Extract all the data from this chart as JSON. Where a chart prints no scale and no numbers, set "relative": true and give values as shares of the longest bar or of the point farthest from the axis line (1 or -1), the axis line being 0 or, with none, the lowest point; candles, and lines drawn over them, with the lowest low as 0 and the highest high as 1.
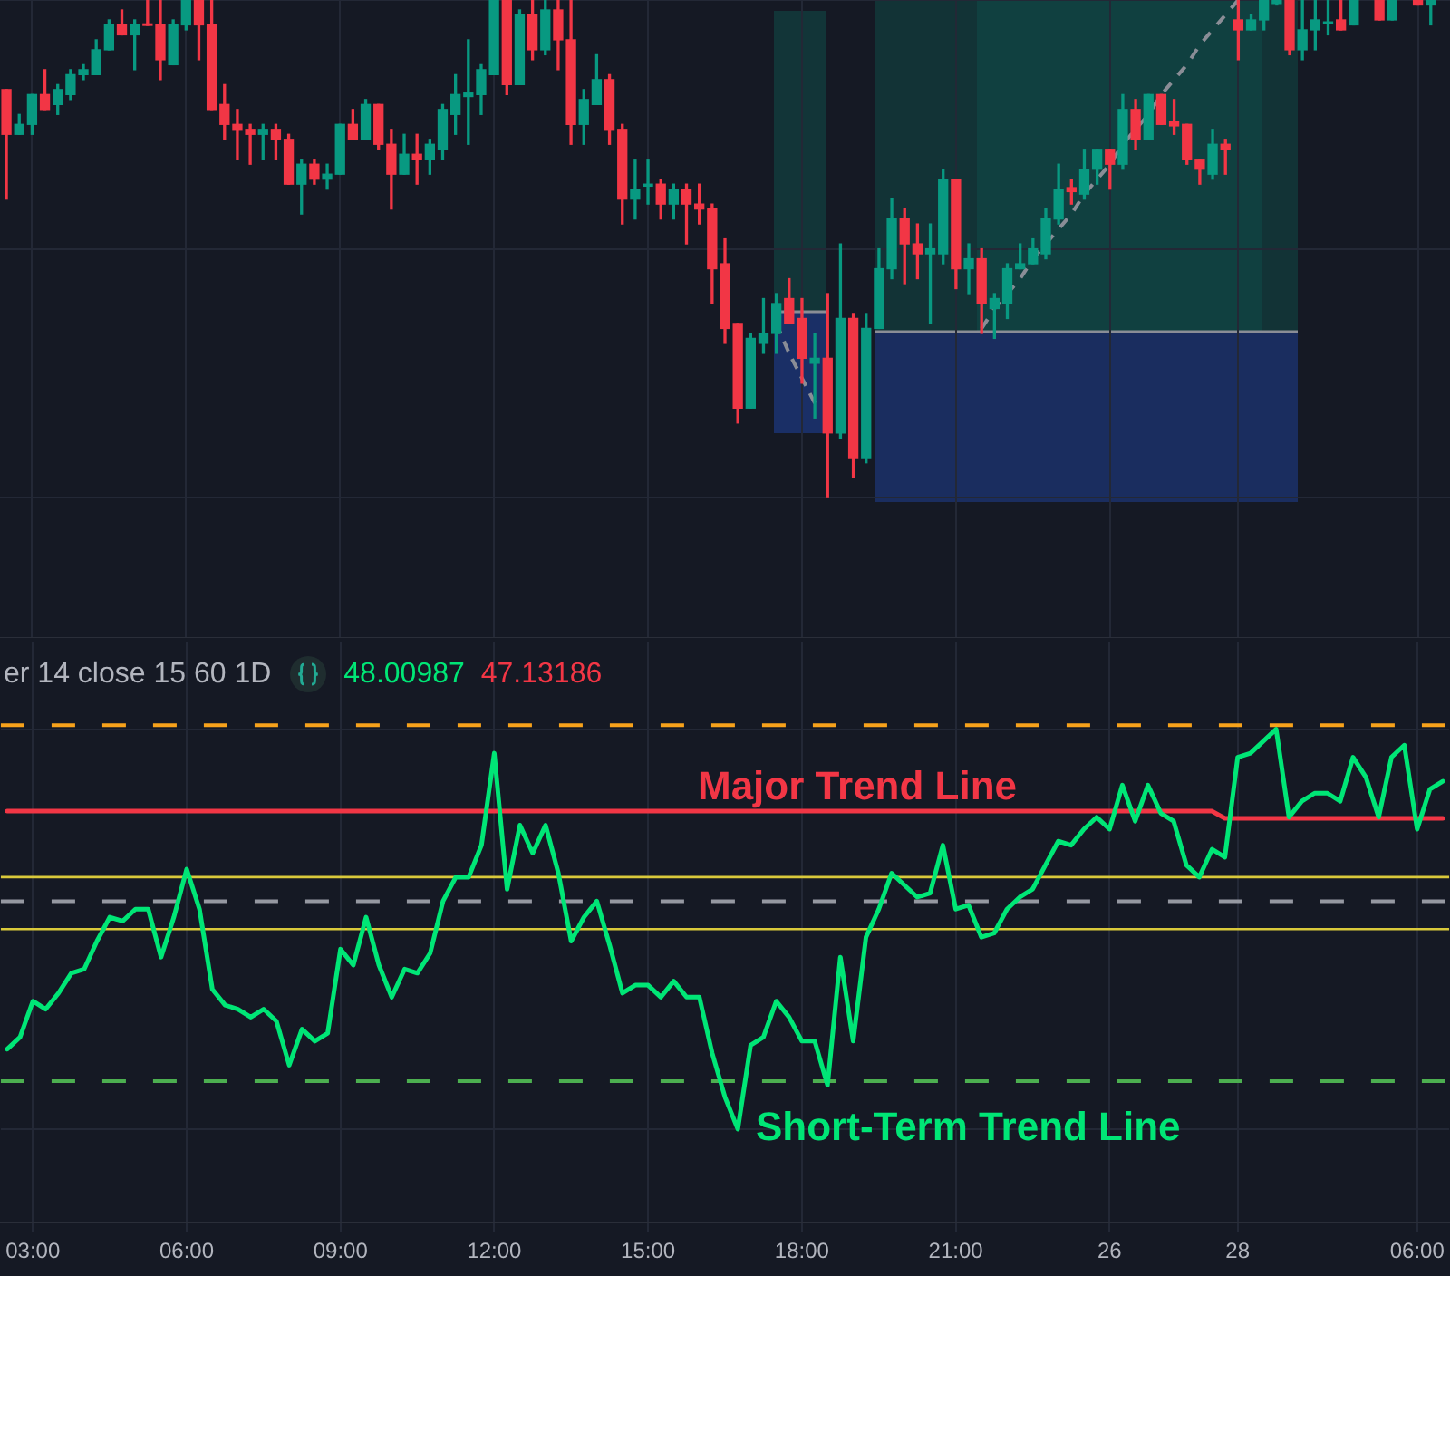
{
  "chart_data": [
    {
      "type": "candlestick",
      "relative": true,
      "tick_labels": false,
      "grid": true,
      "categories": [
        null,
        null,
        null,
        null,
        null,
        null,
        null,
        null,
        null,
        null,
        null,
        null,
        null,
        null,
        null,
        null,
        null,
        null,
        null,
        null,
        null,
        null,
        null,
        null,
        null,
        null,
        null,
        null,
        null,
        null,
        null,
        null,
        null,
        null,
        null,
        null,
        null,
        null,
        null,
        null,
        null,
        null,
        null,
        null,
        null,
        null,
        null,
        null,
        null,
        null,
        null,
        null,
        null,
        null,
        null,
        null,
        null,
        null,
        null,
        null,
        null,
        null,
        null,
        null,
        null,
        null,
        null,
        null,
        null,
        null,
        null,
        null,
        null,
        null,
        null,
        null,
        null,
        null,
        null,
        null,
        null,
        null,
        null,
        null,
        null,
        null,
        null,
        null,
        null,
        null,
        null,
        null,
        null,
        null,
        null,
        null,
        null,
        null,
        null,
        null,
        null,
        null,
        null,
        null,
        null,
        null,
        null,
        null,
        null,
        null,
        null,
        null,
        null
      ],
      "ohlc": [
        [
          0.82,
          0.82,
          0.6,
          0.73
        ],
        [
          0.73,
          0.77,
          0.73,
          0.75
        ],
        [
          0.75,
          0.81,
          0.73,
          0.81
        ],
        [
          0.81,
          0.86,
          0.78,
          0.78
        ],
        [
          0.79,
          0.83,
          0.77,
          0.82
        ],
        [
          0.81,
          0.86,
          0.8,
          0.85
        ],
        [
          0.85,
          0.87,
          0.84,
          0.86
        ],
        [
          0.85,
          0.92,
          0.85,
          0.9
        ],
        [
          0.9,
          0.96,
          0.9,
          0.95
        ],
        [
          0.95,
          0.98,
          0.93,
          0.93
        ],
        [
          0.93,
          0.96,
          0.86,
          0.95
        ],
        [
          0.952,
          1,
          0.949,
          0.949
        ],
        [
          0.95,
          1,
          0.84,
          0.88
        ],
        [
          0.87,
          0.96,
          0.87,
          0.95
        ],
        [
          0.95,
          1,
          0.94,
          1
        ],
        [
          1,
          1,
          0.88,
          0.95
        ],
        [
          0.95,
          1,
          0.78,
          0.78
        ],
        [
          0.79,
          0.83,
          0.72,
          0.75
        ],
        [
          0.75,
          0.78,
          0.68,
          0.74
        ],
        [
          0.74,
          0.75,
          0.67,
          0.73
        ],
        [
          0.73,
          0.75,
          0.68,
          0.74
        ],
        [
          0.74,
          0.75,
          0.68,
          0.72
        ],
        [
          0.72,
          0.73,
          0.63,
          0.63
        ],
        [
          0.63,
          0.68,
          0.57,
          0.67
        ],
        [
          0.67,
          0.68,
          0.63,
          0.64
        ],
        [
          0.64,
          0.67,
          0.62,
          0.65
        ],
        [
          0.65,
          0.75,
          0.65,
          0.75
        ],
        [
          0.75,
          0.78,
          0.72,
          0.72
        ],
        [
          0.72,
          0.8,
          0.72,
          0.79
        ],
        [
          0.79,
          0.79,
          0.7,
          0.71
        ],
        [
          0.71,
          0.74,
          0.58,
          0.65
        ],
        [
          0.65,
          0.73,
          0.65,
          0.69
        ],
        [
          0.69,
          0.73,
          0.63,
          0.68
        ],
        [
          0.68,
          0.72,
          0.65,
          0.71
        ],
        [
          0.7,
          0.79,
          0.68,
          0.78
        ],
        [
          0.77,
          0.85,
          0.73,
          0.81
        ],
        [
          0.806,
          0.92,
          0.71,
          0.813
        ],
        [
          0.81,
          0.87,
          0.77,
          0.86
        ],
        [
          0.85,
          1,
          0.85,
          1
        ],
        [
          1,
          1,
          0.81,
          0.83
        ],
        [
          0.83,
          0.98,
          0.83,
          0.97
        ],
        [
          0.97,
          1,
          0.88,
          0.9
        ],
        [
          0.9,
          1,
          0.89,
          0.98
        ],
        [
          0.98,
          1,
          0.86,
          0.92
        ],
        [
          0.92,
          1,
          0.71,
          0.75
        ],
        [
          0.75,
          0.82,
          0.71,
          0.8
        ],
        [
          0.79,
          0.89,
          0.79,
          0.84
        ],
        [
          0.84,
          0.85,
          0.71,
          0.74
        ],
        [
          0.74,
          0.75,
          0.55,
          0.6
        ],
        [
          0.6,
          0.68,
          0.56,
          0.62
        ],
        [
          0.626,
          0.68,
          0.59,
          0.63
        ],
        [
          0.63,
          0.64,
          0.56,
          0.59
        ],
        [
          0.59,
          0.63,
          0.56,
          0.62
        ],
        [
          0.62,
          0.63,
          0.51,
          0.59
        ],
        [
          0.59,
          0.63,
          0.55,
          0.58
        ],
        [
          0.58,
          0.59,
          0.39,
          0.46
        ],
        [
          0.47,
          0.52,
          0.31,
          0.34
        ],
        [
          0.35,
          0.35,
          0.15,
          0.18
        ],
        [
          0.18,
          0.33,
          0.18,
          0.32
        ],
        [
          0.31,
          0.4,
          0.29,
          0.33
        ],
        [
          0.33,
          0.41,
          0.29,
          0.39
        ],
        [
          0.4,
          0.44,
          0.35,
          0.35
        ],
        [
          0.36,
          0.4,
          0.23,
          0.28
        ],
        [
          0.27,
          0.33,
          0.16,
          0.28
        ],
        [
          0.28,
          0.41,
          0,
          0.13
        ],
        [
          0.13,
          0.51,
          0.12,
          0.36
        ],
        [
          0.36,
          0.37,
          0.04,
          0.08
        ],
        [
          0.08,
          0.37,
          0.07,
          0.34
        ],
        [
          0.34,
          0.5,
          0.34,
          0.46
        ],
        [
          0.46,
          0.6,
          0.44,
          0.56
        ],
        [
          0.56,
          0.58,
          0.43,
          0.51
        ],
        [
          0.51,
          0.55,
          0.44,
          0.49
        ],
        [
          0.49,
          0.55,
          0.35,
          0.5
        ],
        [
          0.49,
          0.66,
          0.47,
          0.64
        ],
        [
          0.64,
          0.64,
          0.42,
          0.46
        ],
        [
          0.46,
          0.51,
          0.41,
          0.48
        ],
        [
          0.48,
          0.5,
          0.33,
          0.39
        ],
        [
          0.38,
          0.41,
          0.32,
          0.4
        ],
        [
          0.39,
          0.47,
          0.36,
          0.46
        ],
        [
          0.46,
          0.51,
          0.46,
          0.47
        ],
        [
          0.47,
          0.52,
          0.47,
          0.5
        ],
        [
          0.49,
          0.58,
          0.48,
          0.56
        ],
        [
          0.56,
          0.67,
          0.55,
          0.62
        ],
        [
          0.623,
          0.64,
          0.59,
          0.615
        ],
        [
          0.61,
          0.7,
          0.6,
          0.66
        ],
        [
          0.66,
          0.7,
          0.63,
          0.7
        ],
        [
          0.7,
          0.7,
          0.62,
          0.67
        ],
        [
          0.67,
          0.81,
          0.66,
          0.78
        ],
        [
          0.78,
          0.8,
          0.7,
          0.72
        ],
        [
          0.72,
          0.81,
          0.72,
          0.81
        ],
        [
          0.81,
          0.81,
          0.75,
          0.75
        ],
        [
          0.755,
          0.8,
          0.73,
          0.747
        ],
        [
          0.75,
          0.75,
          0.67,
          0.68
        ],
        [
          0.68,
          0.68,
          0.63,
          0.66
        ],
        [
          0.65,
          0.74,
          0.64,
          0.71
        ],
        [
          0.71,
          0.72,
          0.65,
          0.7
        ],
        [
          0.96,
          1,
          0.88,
          0.94
        ],
        [
          0.94,
          0.97,
          0.94,
          0.96
        ],
        [
          0.96,
          1,
          0.94,
          1
        ],
        [
          0.993,
          1,
          0.99,
          1
        ],
        [
          1,
          1,
          0.89,
          0.9
        ],
        [
          0.9,
          1,
          0.88,
          0.94
        ],
        [
          0.94,
          1,
          0.9,
          0.96
        ],
        [
          0.952,
          1,
          0.93,
          0.956
        ],
        [
          0.96,
          1,
          0.94,
          0.94
        ],
        [
          0.95,
          1,
          0.95,
          1
        ],
        null,
        [
          1,
          1,
          0.96,
          0.96
        ],
        [
          0.96,
          1,
          0.96,
          1
        ],
        null,
        [
          1,
          1,
          0.99,
          0.99
        ],
        [
          0.99,
          1,
          0.95,
          1
        ],
        null
      ],
      "colors": [
        "#f23645",
        "#089981",
        "#089981",
        "#f23645",
        "#089981",
        "#089981",
        "#089981",
        "#089981",
        "#089981",
        "#f23645",
        "#089981",
        "#f23645",
        "#f23645",
        "#089981",
        "#089981",
        "#f23645",
        "#f23645",
        "#f23645",
        "#f23645",
        "#f23645",
        "#089981",
        "#f23645",
        "#f23645",
        "#089981",
        "#f23645",
        "#089981",
        "#089981",
        "#f23645",
        "#089981",
        "#f23645",
        "#f23645",
        "#089981",
        "#f23645",
        "#089981",
        "#089981",
        "#089981",
        "#089981",
        "#089981",
        "#089981",
        "#f23645",
        "#089981",
        "#f23645",
        "#089981",
        "#f23645",
        "#f23645",
        "#089981",
        "#089981",
        "#f23645",
        "#f23645",
        "#089981",
        "#089981",
        "#f23645",
        "#089981",
        "#f23645",
        "#f23645",
        "#f23645",
        "#f23645",
        "#f23645",
        "#089981",
        "#089981",
        "#089981",
        "#f23645",
        "#f23645",
        "#089981",
        "#f23645",
        "#089981",
        "#f23645",
        "#089981",
        "#089981",
        "#089981",
        "#f23645",
        "#f23645",
        "#089981",
        "#089981",
        "#f23645",
        "#089981",
        "#f23645",
        "#089981",
        "#089981",
        "#089981",
        "#089981",
        "#089981",
        "#089981",
        "#f23645",
        "#089981",
        "#089981",
        "#f23645",
        "#089981",
        "#f23645",
        "#089981",
        "#f23645",
        "#f23645",
        "#f23645",
        "#f23645",
        "#089981",
        "#f23645",
        "#f23645",
        "#089981",
        "#089981",
        "#089981",
        "#f23645",
        "#089981",
        "#089981",
        "#089981",
        "#f23645",
        "#089981",
        null,
        "#f23645",
        "#089981",
        null,
        "#f23645",
        "#089981",
        null
      ],
      "series": [
        {
          "type": "line",
          "color": "#8a8d96",
          "line_style": "dashed",
          "values": [
            null,
            null,
            null,
            null,
            null,
            null,
            null,
            null,
            null,
            null,
            null,
            null,
            null,
            null,
            null,
            null,
            null,
            null,
            null,
            null,
            null,
            null,
            null,
            null,
            null,
            null,
            null,
            null,
            null,
            null,
            null,
            null,
            null,
            null,
            null,
            null,
            null,
            null,
            null,
            null,
            null,
            null,
            null,
            null,
            null,
            null,
            null,
            null,
            null,
            null,
            null,
            null,
            null,
            null,
            null,
            null,
            null,
            null,
            null,
            null,
            0.35,
            0.29,
            0.24,
            0.19,
            null,
            null,
            null,
            null,
            null,
            null,
            null,
            null,
            null,
            null,
            null,
            null,
            null,
            null,
            null,
            null,
            null,
            null,
            null,
            null,
            null,
            null,
            null,
            null,
            null,
            null,
            null,
            null,
            null,
            null,
            null,
            null,
            null,
            null,
            null,
            null,
            null,
            null,
            null,
            null,
            null,
            null,
            null,
            null,
            null,
            null,
            null,
            null,
            null
          ]
        },
        {
          "type": "line",
          "color": "#8a8d96",
          "line_style": "dashed",
          "values": [
            null,
            null,
            null,
            null,
            null,
            null,
            null,
            null,
            null,
            null,
            null,
            null,
            null,
            null,
            null,
            null,
            null,
            null,
            null,
            null,
            null,
            null,
            null,
            null,
            null,
            null,
            null,
            null,
            null,
            null,
            null,
            null,
            null,
            null,
            null,
            null,
            null,
            null,
            null,
            null,
            null,
            null,
            null,
            null,
            null,
            null,
            null,
            null,
            null,
            null,
            null,
            null,
            null,
            null,
            null,
            null,
            null,
            null,
            null,
            null,
            null,
            null,
            null,
            null,
            null,
            null,
            null,
            null,
            null,
            null,
            null,
            null,
            null,
            null,
            null,
            null,
            0.34,
            0.38,
            0.41,
            0.44,
            0.48,
            0.51,
            0.54,
            0.57,
            0.61,
            0.64,
            0.67,
            0.71,
            0.74,
            0.77,
            0.81,
            0.84,
            0.87,
            0.91,
            0.94,
            0.97,
            1.0,
            null,
            null,
            null,
            null,
            null,
            null,
            null,
            null,
            null,
            null,
            null,
            null,
            null,
            null,
            null,
            null
          ]
        }
      ]
    },
    {
      "type": "line",
      "relative": true,
      "tick_labels": "x",
      "grid": true,
      "categories": [
        null,
        null,
        "03:00",
        null,
        null,
        null,
        null,
        null,
        null,
        null,
        null,
        null,
        null,
        null,
        "06:00",
        null,
        null,
        null,
        null,
        null,
        null,
        null,
        null,
        null,
        null,
        null,
        "09:00",
        null,
        null,
        null,
        null,
        null,
        null,
        null,
        null,
        null,
        null,
        null,
        "12:00",
        null,
        null,
        null,
        null,
        null,
        null,
        null,
        null,
        null,
        null,
        null,
        "15:00",
        null,
        null,
        null,
        null,
        null,
        null,
        null,
        null,
        null,
        null,
        null,
        "18:00",
        null,
        null,
        null,
        null,
        null,
        null,
        null,
        null,
        null,
        null,
        null,
        "21:00",
        null,
        null,
        null,
        null,
        null,
        null,
        null,
        null,
        null,
        null,
        null,
        "26",
        null,
        null,
        null,
        null,
        null,
        null,
        null,
        null,
        null,
        "28",
        null,
        null,
        null,
        null,
        null,
        null,
        null,
        null,
        null,
        null,
        null,
        null,
        null,
        "06:00",
        null,
        null
      ],
      "series": [
        {
          "name": "Short-Term Trend Line",
          "color": "#00e676",
          "values": [
            0.2,
            0.23,
            0.32,
            0.3,
            0.34,
            0.39,
            0.4,
            0.47,
            0.53,
            0.52,
            0.55,
            0.55,
            0.43,
            0.53,
            0.65,
            0.55,
            0.35,
            0.31,
            0.3,
            0.28,
            0.3,
            0.27,
            0.16,
            0.25,
            0.22,
            0.24,
            0.45,
            0.41,
            0.53,
            0.41,
            0.33,
            0.4,
            0.39,
            0.44,
            0.57,
            0.63,
            0.63,
            0.71,
            0.94,
            0.6,
            0.76,
            0.69,
            0.76,
            0.64,
            0.47,
            0.53,
            0.57,
            0.46,
            0.34,
            0.36,
            0.36,
            0.33,
            0.37,
            0.33,
            0.33,
            0.19,
            0.08,
            0.0,
            0.21,
            0.23,
            0.32,
            0.28,
            0.22,
            0.22,
            0.11,
            0.43,
            0.22,
            0.48,
            0.55,
            0.64,
            0.61,
            0.58,
            0.59,
            0.71,
            0.55,
            0.56,
            0.48,
            0.49,
            0.55,
            0.58,
            0.6,
            0.66,
            0.72,
            0.71,
            0.75,
            0.78,
            0.75,
            0.86,
            0.77,
            0.86,
            0.79,
            0.77,
            0.66,
            0.63,
            0.7,
            0.68,
            0.93,
            0.94,
            0.97,
            1.0,
            0.78,
            0.82,
            0.84,
            0.84,
            0.82,
            0.93,
            0.88,
            0.78,
            0.93,
            0.96,
            0.75,
            0.85,
            0.87
          ]
        },
        {
          "name": "Major Trend Line",
          "color": "#f23645",
          "values": [
            0.795,
            0.795,
            0.795,
            0.795,
            0.795,
            0.795,
            0.795,
            0.795,
            0.795,
            0.795,
            0.795,
            0.795,
            0.795,
            0.795,
            0.795,
            0.795,
            0.795,
            0.795,
            0.795,
            0.795,
            0.795,
            0.795,
            0.795,
            0.795,
            0.795,
            0.795,
            0.795,
            0.795,
            0.795,
            0.795,
            0.795,
            0.795,
            0.795,
            0.795,
            0.795,
            0.795,
            0.795,
            0.795,
            0.795,
            0.795,
            0.795,
            0.795,
            0.795,
            0.795,
            0.795,
            0.795,
            0.795,
            0.795,
            0.795,
            0.795,
            0.795,
            0.795,
            0.795,
            0.795,
            0.795,
            0.795,
            0.795,
            0.795,
            0.795,
            0.795,
            0.795,
            0.795,
            0.795,
            0.795,
            0.795,
            0.795,
            0.795,
            0.795,
            0.795,
            0.795,
            0.795,
            0.795,
            0.795,
            0.795,
            0.795,
            0.795,
            0.795,
            0.795,
            0.795,
            0.795,
            0.795,
            0.795,
            0.795,
            0.795,
            0.795,
            0.795,
            0.795,
            0.795,
            0.795,
            0.795,
            0.795,
            0.795,
            0.795,
            0.795,
            0.795,
            0.777,
            0.777,
            0.777,
            0.777,
            0.777,
            0.777,
            0.777,
            0.777,
            0.777,
            0.777,
            0.777,
            0.777,
            0.777,
            0.777,
            0.777,
            0.777,
            0.777,
            0.777
          ]
        }
      ],
      "ref_lines": [
        {
          "axis": "y",
          "value": 1.01,
          "color": "#f7a21b",
          "line_style": "dashed"
        },
        {
          "axis": "y",
          "value": 0.63,
          "color": "#d9c93b",
          "line_style": "solid"
        },
        {
          "axis": "y",
          "value": 0.57,
          "color": "#9598a1",
          "line_style": "dashed"
        },
        {
          "axis": "y",
          "value": 0.5,
          "color": "#d9c93b",
          "line_style": "solid"
        },
        {
          "axis": "y",
          "value": 0.12,
          "color": "#4caf50",
          "line_style": "dashed"
        }
      ],
      "annotations": [
        "er 14 close 15 60 1D",
        "48.00987",
        "47.13186"
      ]
    }
  ]
}
